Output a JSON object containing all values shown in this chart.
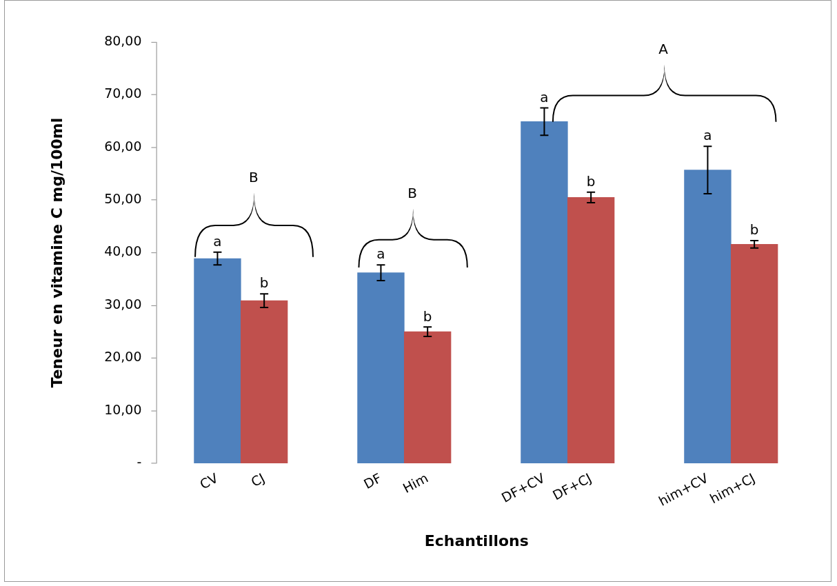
{
  "chart_data": {
    "type": "bar",
    "xlabel": "Echantillons",
    "ylabel": "Teneur en vitamine C mg/100ml",
    "categories": [
      "CV",
      "CJ",
      "DF",
      "Him",
      "DF+CV",
      "DF+CJ",
      "him+CV",
      "him+CJ"
    ],
    "values": [
      38.9,
      30.9,
      36.2,
      25.0,
      64.9,
      50.5,
      55.7,
      41.6
    ],
    "colors": [
      "#4f81bd",
      "#c0504d",
      "#4f81bd",
      "#c0504d",
      "#4f81bd",
      "#c0504d",
      "#4f81bd",
      "#c0504d"
    ],
    "errors": [
      1.2,
      1.3,
      1.5,
      0.9,
      2.6,
      1.0,
      4.5,
      0.7
    ],
    "ylim": [
      0,
      80
    ],
    "yticks": [
      {
        "value": 0,
        "label": "-"
      },
      {
        "value": 10,
        "label": "10,00"
      },
      {
        "value": 20,
        "label": "20,00"
      },
      {
        "value": 30,
        "label": "30,00"
      },
      {
        "value": 40,
        "label": "40,00"
      },
      {
        "value": 50,
        "label": "50,00"
      },
      {
        "value": 60,
        "label": "60,00"
      },
      {
        "value": 70,
        "label": "70,00"
      },
      {
        "value": 80,
        "label": "80,00"
      }
    ],
    "grid": false,
    "legend": false,
    "annotations": [
      "a",
      "b",
      "a",
      "b",
      "a",
      "b",
      "a",
      "b",
      "B",
      "B",
      "A"
    ]
  }
}
